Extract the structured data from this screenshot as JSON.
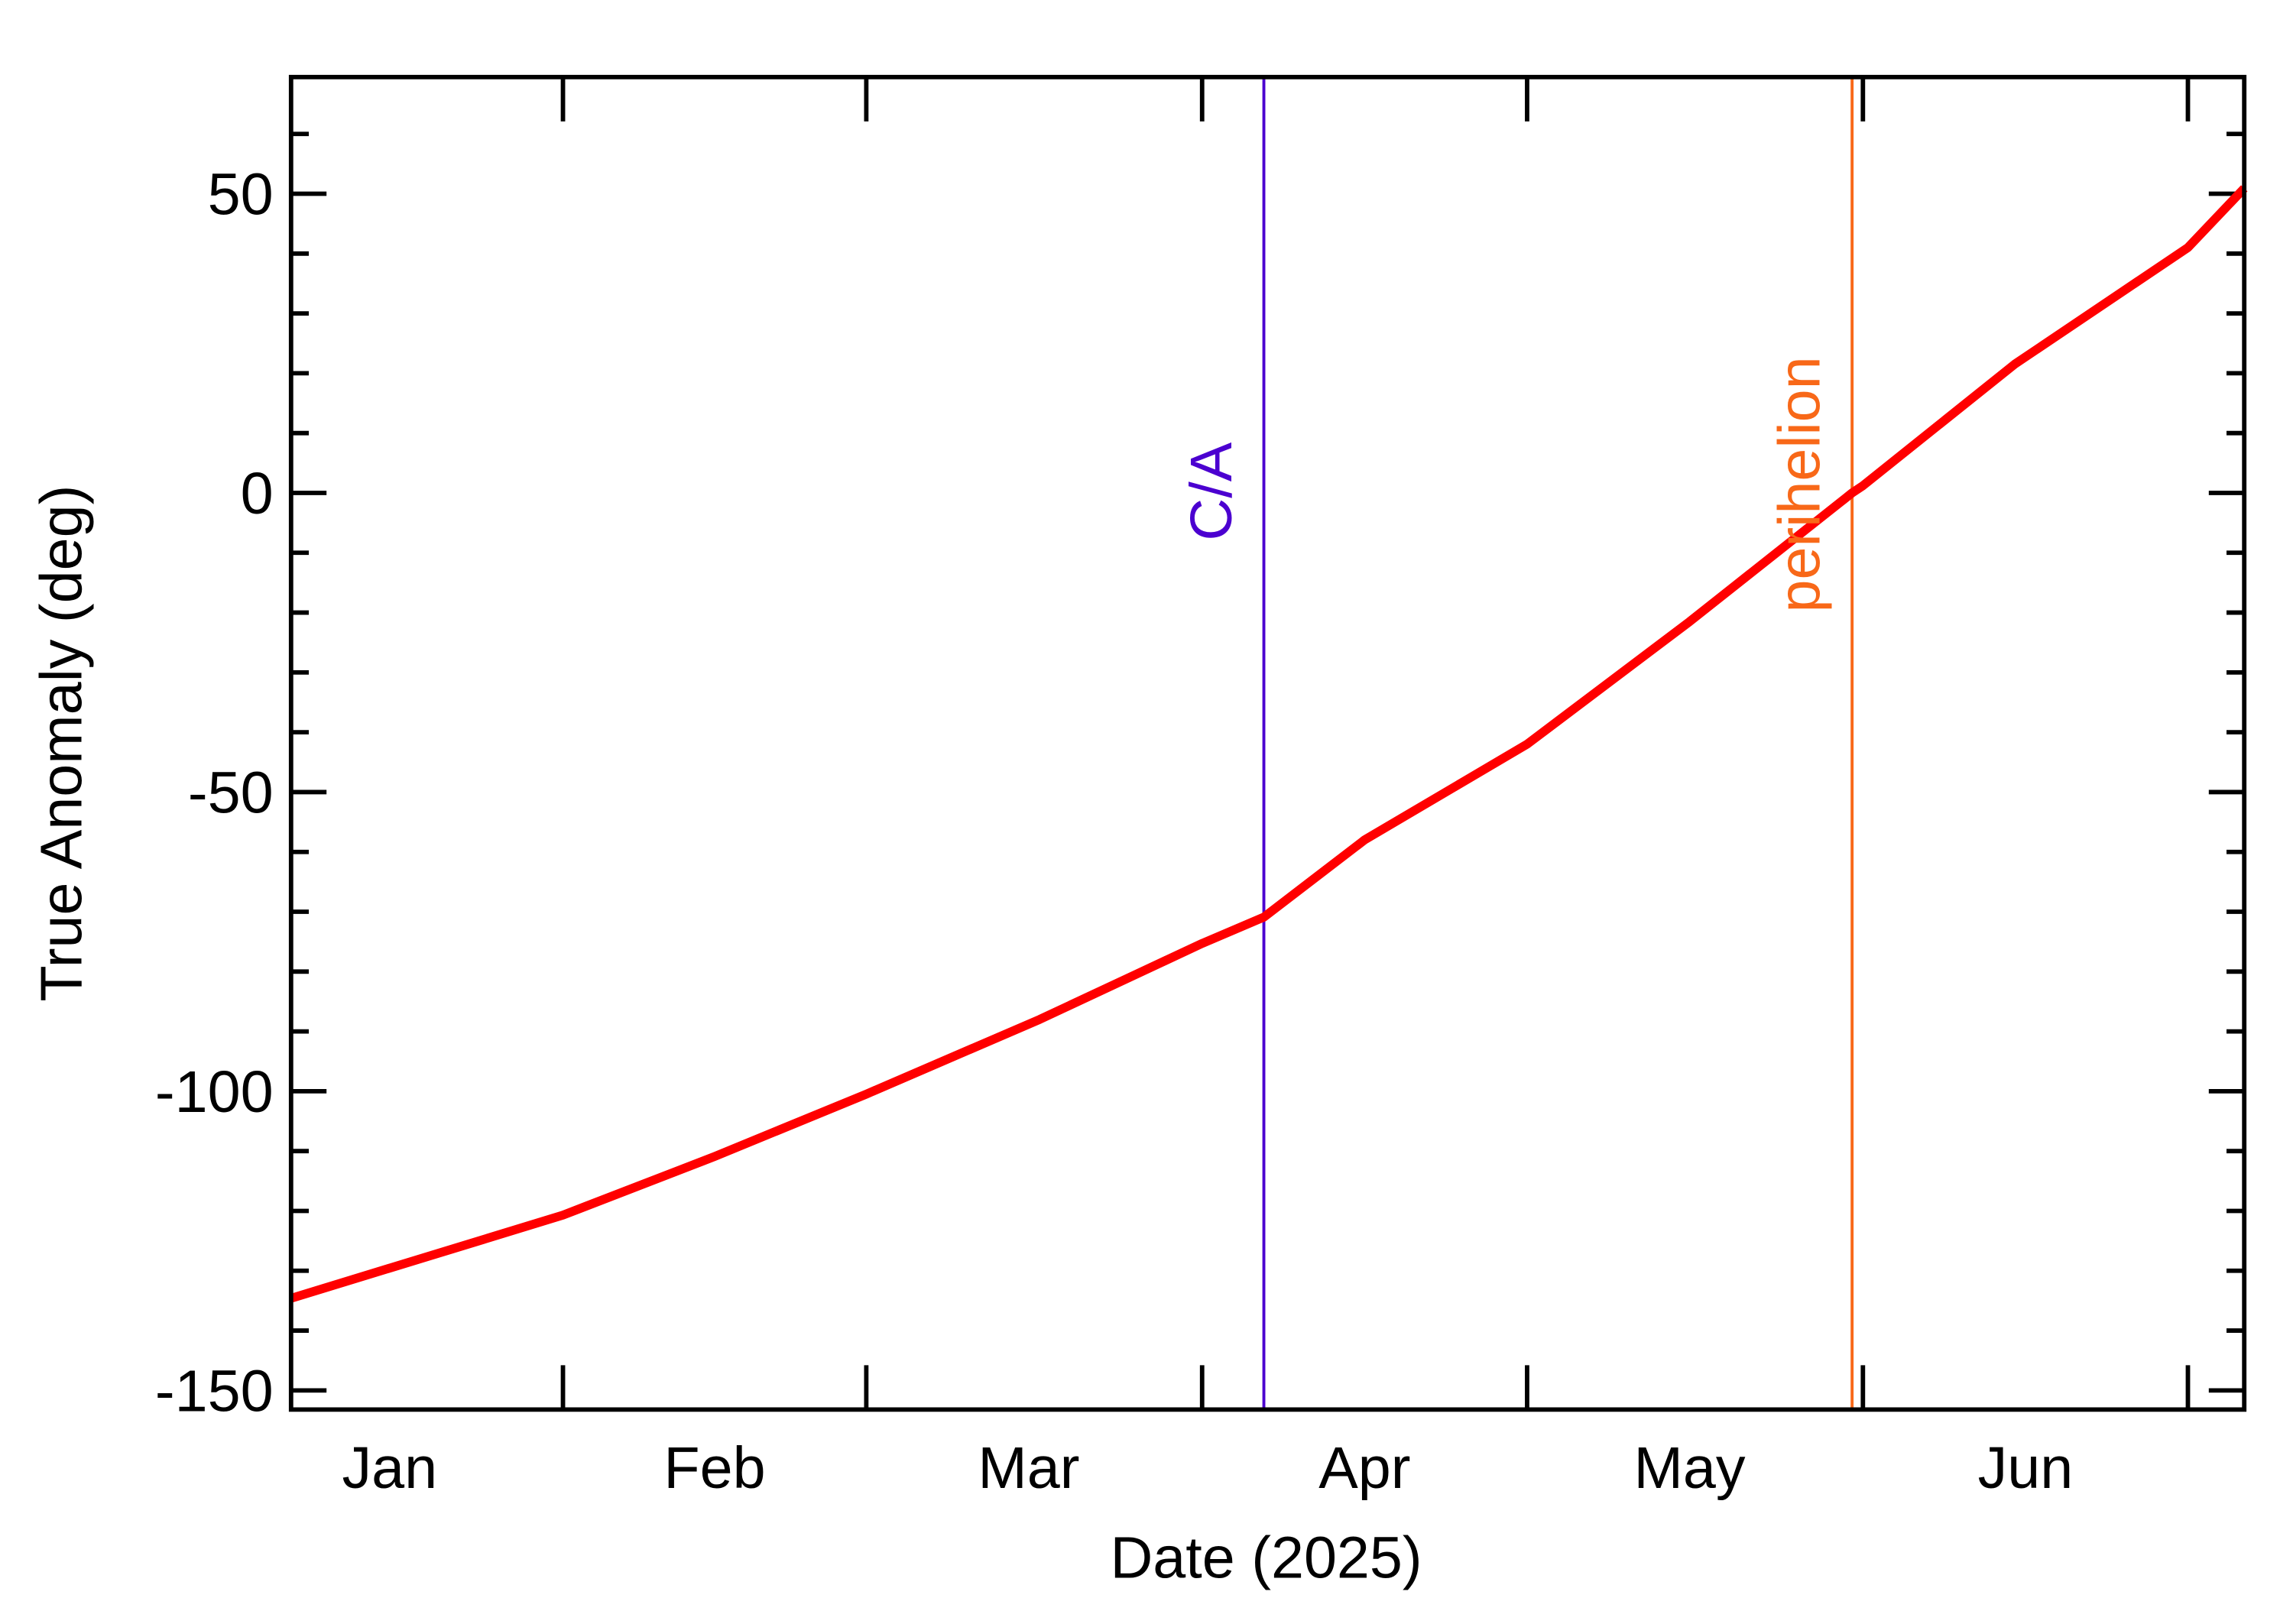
{
  "chart_data": {
    "type": "line",
    "xlabel": "Date (2025)",
    "ylabel": "True Anomaly (deg)",
    "x": [
      5.9,
      31,
      45,
      59,
      75,
      90,
      95.7,
      105,
      120,
      135,
      150,
      151,
      165,
      181,
      186.2
    ],
    "series": [
      {
        "name": "True Anomaly",
        "color": "#ff0000",
        "values": [
          -134.6,
          -120.7,
          -110.9,
          -100.5,
          -88,
          -75.3,
          -70.9,
          -58,
          -42,
          -21.5,
          0,
          1.2,
          21.5,
          41,
          50.9
        ]
      }
    ],
    "xlim": [
      5.9,
      186.2
    ],
    "xticks": [
      {
        "value": 15,
        "label": "Jan"
      },
      {
        "value": 45,
        "label": "Feb"
      },
      {
        "value": 74,
        "label": "Mar"
      },
      {
        "value": 105,
        "label": "Apr"
      },
      {
        "value": 135,
        "label": "May"
      },
      {
        "value": 166,
        "label": "Jun"
      }
    ],
    "xminorticks": [
      31,
      59,
      90,
      120,
      151,
      181
    ],
    "ylim": [
      -153.2,
      69.5
    ],
    "yticks": [
      -150,
      -100,
      -50,
      0,
      50
    ],
    "yminorticks": [
      -140,
      -130,
      -120,
      -110,
      -90,
      -80,
      -70,
      -60,
      -40,
      -30,
      -20,
      -10,
      10,
      20,
      30,
      40,
      60
    ],
    "markers": [
      {
        "label": "C/A",
        "x": 95.7,
        "color": "#4b00d0"
      },
      {
        "label": "perihelion",
        "x": 150,
        "color": "#f86818"
      }
    ],
    "grid": false
  }
}
